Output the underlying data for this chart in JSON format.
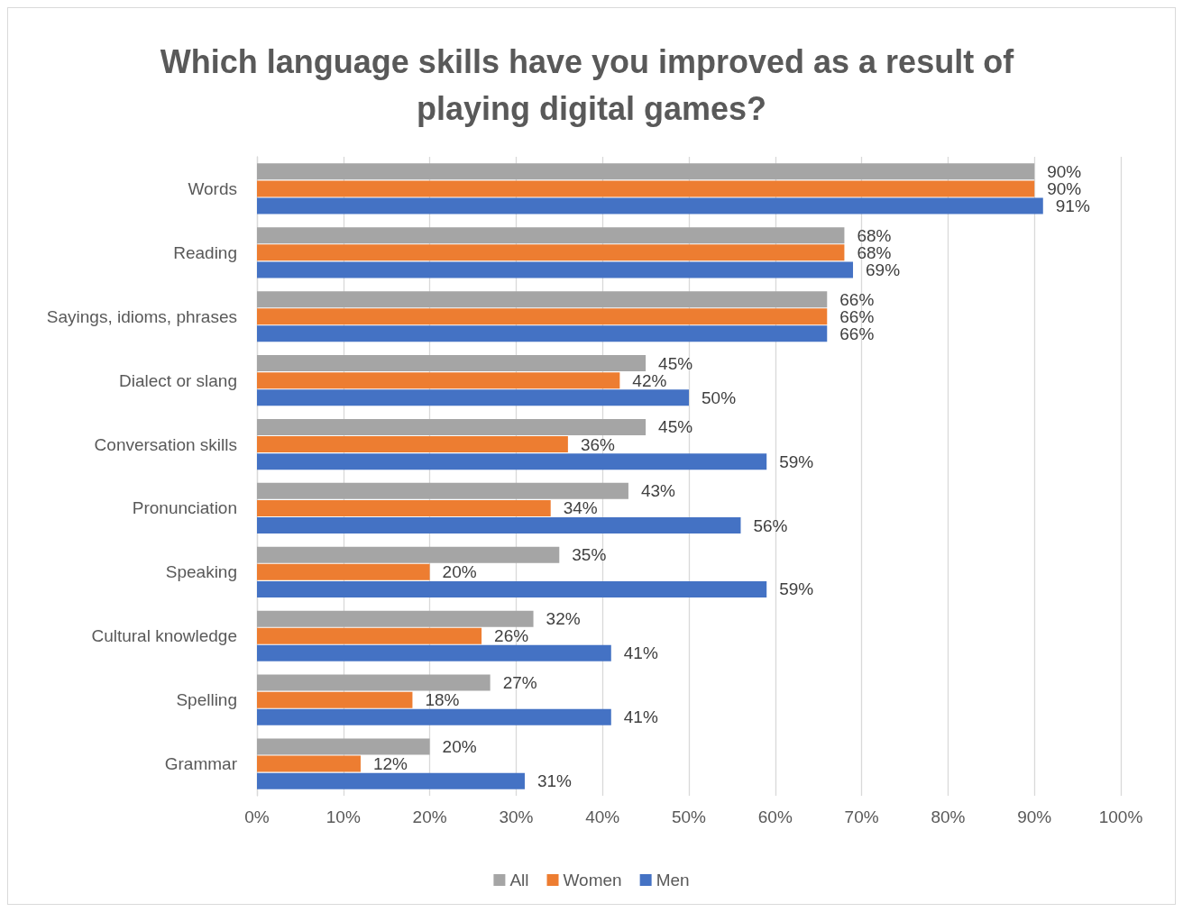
{
  "chart_data": {
    "type": "bar",
    "orientation": "horizontal",
    "title": "Which language skills have you improved as a result of playing digital games?",
    "categories": [
      "Words",
      "Reading",
      "Sayings, idioms, phrases",
      "Dialect or slang",
      "Conversation skills",
      "Pronunciation",
      "Speaking",
      "Cultural knowledge",
      "Spelling",
      "Grammar"
    ],
    "series": [
      {
        "name": "All",
        "color": "#a5a5a5",
        "values": [
          90,
          68,
          66,
          45,
          45,
          43,
          35,
          32,
          27,
          20
        ],
        "value_labels": [
          "90%",
          "68%",
          "66%",
          "45%",
          "45%",
          "43%",
          "35%",
          "32%",
          "27%",
          "20%"
        ]
      },
      {
        "name": "Women",
        "color": "#ed7d31",
        "values": [
          90,
          68,
          66,
          42,
          36,
          34,
          20,
          26,
          18,
          12
        ],
        "value_labels": [
          "90%",
          "68%",
          "66%",
          "42%",
          "36%",
          "34%",
          "20%",
          "26%",
          "18%",
          "12%"
        ]
      },
      {
        "name": "Men",
        "color": "#4472c4",
        "values": [
          91,
          69,
          66,
          50,
          59,
          56,
          59,
          41,
          41,
          31
        ],
        "value_labels": [
          "91%",
          "69%",
          "66%",
          "50%",
          "59%",
          "56%",
          "59%",
          "41%",
          "41%",
          "31%"
        ]
      }
    ],
    "xlim": [
      0,
      100
    ],
    "xticks": [
      {
        "value": 0,
        "label": "0%"
      },
      {
        "value": 10,
        "label": "10%"
      },
      {
        "value": 20,
        "label": "20%"
      },
      {
        "value": 30,
        "label": "30%"
      },
      {
        "value": 40,
        "label": "40%"
      },
      {
        "value": 50,
        "label": "50%"
      },
      {
        "value": 60,
        "label": "60%"
      },
      {
        "value": 70,
        "label": "70%"
      },
      {
        "value": 80,
        "label": "80%"
      },
      {
        "value": 90,
        "label": "90%"
      },
      {
        "value": 100,
        "label": "100%"
      }
    ],
    "grid": "x",
    "legend": "bottom"
  }
}
